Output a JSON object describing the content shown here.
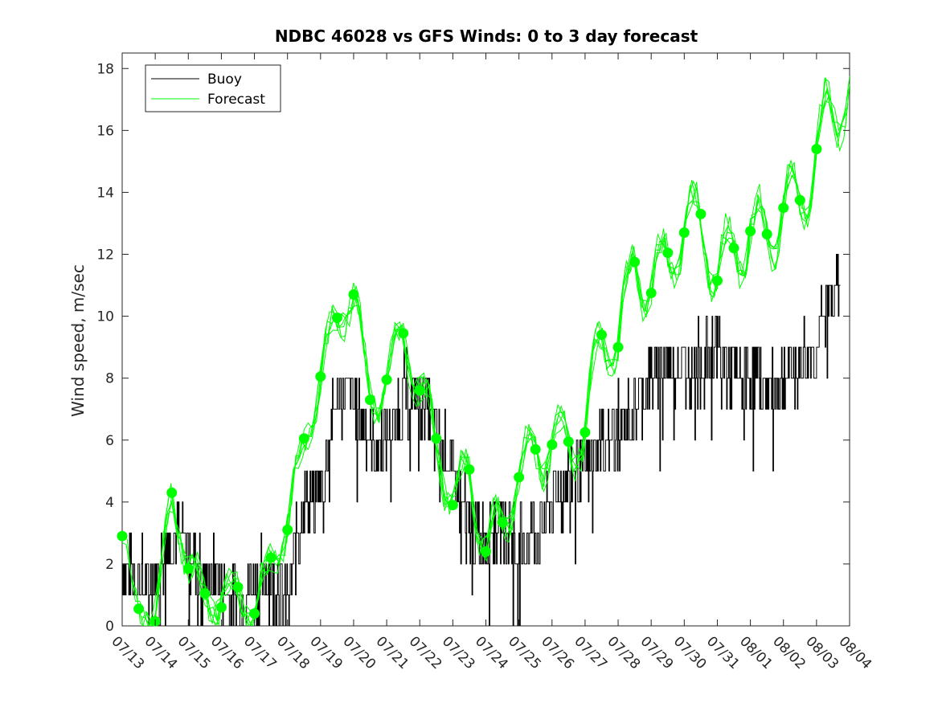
{
  "chart_data": {
    "type": "line",
    "title": "NDBC 46028 vs GFS Winds: 0 to 3 day forecast",
    "xlabel": "",
    "ylabel": "Wind speed, m/sec",
    "xlim": [
      "07/13",
      "08/04"
    ],
    "ylim": [
      0,
      18.5
    ],
    "x_tick_labels": [
      "07/13",
      "07/14",
      "07/15",
      "07/16",
      "07/17",
      "07/18",
      "07/19",
      "07/20",
      "07/21",
      "07/22",
      "07/23",
      "07/24",
      "07/25",
      "07/26",
      "07/27",
      "07/28",
      "07/29",
      "07/30",
      "07/31",
      "08/01",
      "08/02",
      "08/03",
      "08/04"
    ],
    "y_ticks": [
      0,
      2,
      4,
      6,
      8,
      10,
      12,
      14,
      16,
      18
    ],
    "grid": false,
    "legend_position": "top-left",
    "colors": {
      "buoy": "#000000",
      "forecast": "#00ff00",
      "axis": "#262626"
    },
    "series": [
      {
        "name": "Buoy",
        "x_days_from_0713": [
          0,
          0.5,
          1,
          1.5,
          2,
          2.5,
          3,
          3.5,
          4,
          4.5,
          5,
          5.5,
          6,
          6.5,
          7,
          7.5,
          8,
          8.5,
          9,
          9.5,
          10,
          10.5,
          11,
          11.5,
          12,
          12.5,
          13,
          13.5,
          14,
          14.5,
          15,
          15.5,
          16,
          16.5,
          17,
          17.5,
          18,
          18.5,
          19,
          19.5,
          20,
          20.5,
          21,
          21.5,
          22
        ],
        "values": [
          2,
          1.5,
          1.5,
          3,
          2.5,
          1.5,
          1.5,
          1,
          1.5,
          1.5,
          1,
          4,
          4.5,
          7.5,
          7.5,
          6,
          6,
          7.5,
          7.5,
          6,
          5,
          3,
          3,
          3.5,
          2.5,
          3,
          4,
          5,
          5,
          6,
          6.5,
          7,
          8,
          8.5,
          8.5,
          8.5,
          9,
          8,
          8,
          7.5,
          8,
          8.5,
          9,
          11,
          11
        ]
      },
      {
        "name": "Forecast",
        "x_days_from_0713": [
          0,
          0.5,
          1,
          1.5,
          2,
          2.5,
          3,
          3.5,
          4,
          4.5,
          5,
          5.5,
          6,
          6.5,
          7,
          7.5,
          8,
          8.5,
          9,
          9.5,
          10,
          10.5,
          11,
          11.5,
          12,
          12.5,
          13,
          13.5,
          14,
          14.5,
          15,
          15.5,
          16,
          16.5,
          17,
          17.5,
          18,
          18.5,
          19,
          19.5,
          20,
          20.5,
          21,
          21.5,
          22
        ],
        "values": [
          2.8,
          0.6,
          0.2,
          4.3,
          1.8,
          1.1,
          0.6,
          1.2,
          0.4,
          2.2,
          3.1,
          6,
          8,
          10,
          10.7,
          7.3,
          8,
          9.5,
          7.6,
          6.1,
          3.9,
          5.1,
          2.4,
          3.4,
          4.8,
          5.7,
          5.8,
          5.9,
          6.2,
          9.4,
          9,
          11.8,
          10.8,
          12,
          12.7,
          13.3,
          11.2,
          12.2,
          12.7,
          12.6,
          13.5,
          13.7,
          15.4,
          16.5,
          17.8
        ]
      }
    ],
    "forecast_markers": {
      "x_days_from_0713": [
        0,
        0.5,
        1,
        1.5,
        2,
        2.5,
        3,
        3.5,
        4,
        4.5,
        5,
        5.5,
        6,
        6.5,
        7,
        7.5,
        8,
        8.5,
        9,
        9.5,
        10,
        10.5,
        11,
        11.5,
        12,
        12.5,
        13,
        13.5,
        14,
        14.5,
        15,
        15.5,
        16,
        16.5,
        17,
        17.5,
        18,
        18.5,
        19,
        19.5,
        20,
        20.5,
        21
      ],
      "values": [
        2.9,
        0.55,
        0.15,
        4.3,
        1.85,
        1.05,
        0.6,
        1.25,
        0.4,
        2.2,
        3.1,
        6.05,
        8.05,
        9.95,
        10.7,
        7.3,
        7.95,
        9.45,
        7.6,
        6.05,
        3.9,
        5.05,
        2.4,
        3.35,
        4.8,
        5.7,
        5.85,
        5.95,
        6.25,
        9.4,
        9,
        11.75,
        10.75,
        12.05,
        12.7,
        13.3,
        11.15,
        12.2,
        12.75,
        12.65,
        13.5,
        13.75,
        15.4
      ]
    }
  },
  "legend": {
    "buoy_label": "Buoy",
    "forecast_label": "Forecast"
  }
}
